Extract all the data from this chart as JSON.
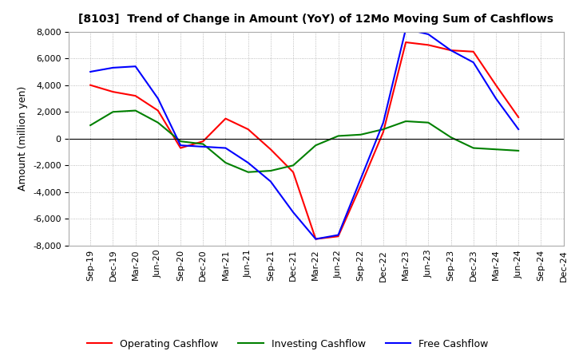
{
  "title": "[8103]  Trend of Change in Amount (YoY) of 12Mo Moving Sum of Cashflows",
  "ylabel": "Amount (million yen)",
  "ylim": [
    -8000,
    8000
  ],
  "yticks": [
    -8000,
    -6000,
    -4000,
    -2000,
    0,
    2000,
    4000,
    6000,
    8000
  ],
  "x_labels": [
    "Sep-19",
    "Dec-19",
    "Mar-20",
    "Jun-20",
    "Sep-20",
    "Dec-20",
    "Mar-21",
    "Jun-21",
    "Sep-21",
    "Dec-21",
    "Mar-22",
    "Jun-22",
    "Sep-22",
    "Dec-22",
    "Mar-23",
    "Jun-23",
    "Sep-23",
    "Dec-23",
    "Mar-24",
    "Jun-24",
    "Sep-24",
    "Dec-24"
  ],
  "operating": [
    4000,
    3500,
    3200,
    2100,
    -700,
    -200,
    1500,
    700,
    -800,
    -2500,
    -7500,
    -7300,
    -3500,
    500,
    7200,
    7000,
    6600,
    6500,
    4000,
    1600,
    null,
    null
  ],
  "investing": [
    1000,
    2000,
    2100,
    1200,
    -200,
    -400,
    -1800,
    -2500,
    -2400,
    -2000,
    -500,
    200,
    300,
    700,
    1300,
    1200,
    100,
    -700,
    -800,
    -900,
    null,
    null
  ],
  "free": [
    5000,
    5300,
    5400,
    3000,
    -500,
    -600,
    -700,
    -1800,
    -3200,
    -5500,
    -7500,
    -7200,
    -3000,
    1200,
    8200,
    7800,
    6600,
    5700,
    3000,
    700,
    null,
    null
  ],
  "operating_color": "#ff0000",
  "investing_color": "#008000",
  "free_color": "#0000ff",
  "bg_color": "#ffffff",
  "grid_color": "#aaaaaa"
}
